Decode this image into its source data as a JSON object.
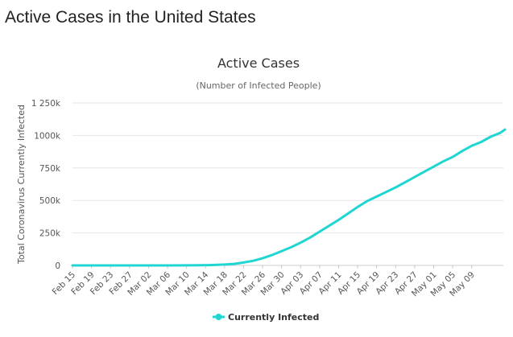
{
  "page": {
    "title": "Active Cases in the United States"
  },
  "chart_data": {
    "type": "line",
    "title": "Active Cases",
    "subtitle": "(Number of Infected People)",
    "xlabel": "",
    "ylabel": "Total Coronavirus Currently Infected",
    "ylim": [
      0,
      1250000
    ],
    "yticks": [
      0,
      250000,
      500000,
      750000,
      1000000,
      1250000
    ],
    "ytick_labels": [
      "0",
      "250k",
      "500k",
      "750k",
      "1000k",
      "1 250k"
    ],
    "grid": true,
    "xtick_labels": [
      "Feb 15",
      "Feb 19",
      "Feb 23",
      "Feb 27",
      "Mar 02",
      "Mar 06",
      "Mar 10",
      "Mar 14",
      "Mar 18",
      "Mar 22",
      "Mar 26",
      "Mar 30",
      "Apr 03",
      "Apr 07",
      "Apr 11",
      "Apr 15",
      "Apr 19",
      "Apr 23",
      "Apr 27",
      "May 01",
      "May 05",
      "May 09"
    ],
    "x_start": "Feb 15",
    "days": 88,
    "legend_position": "bottom-center",
    "series": [
      {
        "name": "Currently Infected",
        "color": "#1fd6d2",
        "points": [
          [
            0,
            0
          ],
          [
            20,
            0
          ],
          [
            24,
            400
          ],
          [
            27,
            1500
          ],
          [
            30,
            3500
          ],
          [
            32,
            7000
          ],
          [
            34,
            12000
          ],
          [
            36,
            22000
          ],
          [
            38,
            35000
          ],
          [
            40,
            55000
          ],
          [
            42,
            80000
          ],
          [
            44,
            110000
          ],
          [
            46,
            140000
          ],
          [
            48,
            175000
          ],
          [
            50,
            215000
          ],
          [
            52,
            260000
          ],
          [
            54,
            305000
          ],
          [
            56,
            350000
          ],
          [
            58,
            400000
          ],
          [
            60,
            450000
          ],
          [
            62,
            495000
          ],
          [
            64,
            530000
          ],
          [
            66,
            565000
          ],
          [
            68,
            600000
          ],
          [
            70,
            640000
          ],
          [
            72,
            680000
          ],
          [
            74,
            720000
          ],
          [
            76,
            760000
          ],
          [
            78,
            800000
          ],
          [
            80,
            835000
          ],
          [
            82,
            880000
          ],
          [
            84,
            920000
          ],
          [
            86,
            950000
          ],
          [
            88,
            990000
          ],
          [
            90,
            1020000
          ],
          [
            91,
            1045000
          ]
        ]
      }
    ]
  }
}
